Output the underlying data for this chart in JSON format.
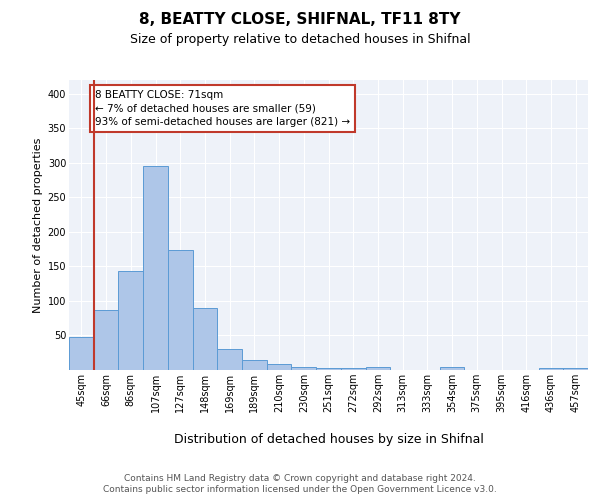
{
  "title": "8, BEATTY CLOSE, SHIFNAL, TF11 8TY",
  "subtitle": "Size of property relative to detached houses in Shifnal",
  "xlabel": "Distribution of detached houses by size in Shifnal",
  "ylabel": "Number of detached properties",
  "bar_labels": [
    "45sqm",
    "66sqm",
    "86sqm",
    "107sqm",
    "127sqm",
    "148sqm",
    "169sqm",
    "189sqm",
    "210sqm",
    "230sqm",
    "251sqm",
    "272sqm",
    "292sqm",
    "313sqm",
    "333sqm",
    "354sqm",
    "375sqm",
    "395sqm",
    "416sqm",
    "436sqm",
    "457sqm"
  ],
  "bar_values": [
    48,
    87,
    144,
    295,
    174,
    90,
    30,
    14,
    8,
    5,
    3,
    3,
    4,
    0,
    0,
    4,
    0,
    0,
    0,
    3,
    3
  ],
  "bar_color": "#aec6e8",
  "bar_edge_color": "#5b9bd5",
  "vline_x": 0.5,
  "vline_color": "#c0392b",
  "annotation_text": "8 BEATTY CLOSE: 71sqm\n← 7% of detached houses are smaller (59)\n93% of semi-detached houses are larger (821) →",
  "annotation_box_color": "#ffffff",
  "annotation_box_edge": "#c0392b",
  "ylim": [
    0,
    420
  ],
  "yticks": [
    0,
    50,
    100,
    150,
    200,
    250,
    300,
    350,
    400
  ],
  "footer_line1": "Contains HM Land Registry data © Crown copyright and database right 2024.",
  "footer_line2": "Contains public sector information licensed under the Open Government Licence v3.0.",
  "plot_bg_color": "#eef2f9",
  "title_fontsize": 11,
  "subtitle_fontsize": 9,
  "axis_label_fontsize": 8,
  "tick_fontsize": 7,
  "footer_fontsize": 6.5,
  "annotation_fontsize": 7.5
}
